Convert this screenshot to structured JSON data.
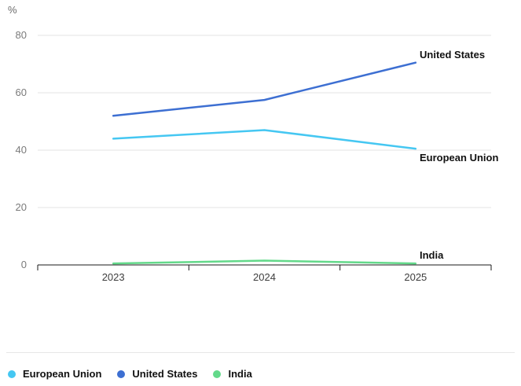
{
  "chart_data": {
    "type": "line",
    "title": "",
    "ylabel": "%",
    "xlabel": "",
    "categories": [
      "2023",
      "2024",
      "2025"
    ],
    "series": [
      {
        "name": "European Union",
        "color": "#45c7f2",
        "values": [
          44,
          47,
          40.5
        ]
      },
      {
        "name": "United States",
        "color": "#3d6fd2",
        "values": [
          52,
          57.5,
          70.5
        ]
      },
      {
        "name": "India",
        "color": "#63d98a",
        "values": [
          0.5,
          1.5,
          0.5
        ]
      }
    ],
    "yticks": [
      0,
      20,
      40,
      60,
      80
    ],
    "ylim": [
      0,
      85
    ],
    "grid": "horizontal",
    "grid_color": "#e3e3e3",
    "axis_color": "#1a1a1a",
    "legend_position": "bottom",
    "legend": [
      "European Union",
      "United States",
      "India"
    ],
    "line_end_labels": [
      "United States",
      "European Union",
      "India"
    ]
  }
}
